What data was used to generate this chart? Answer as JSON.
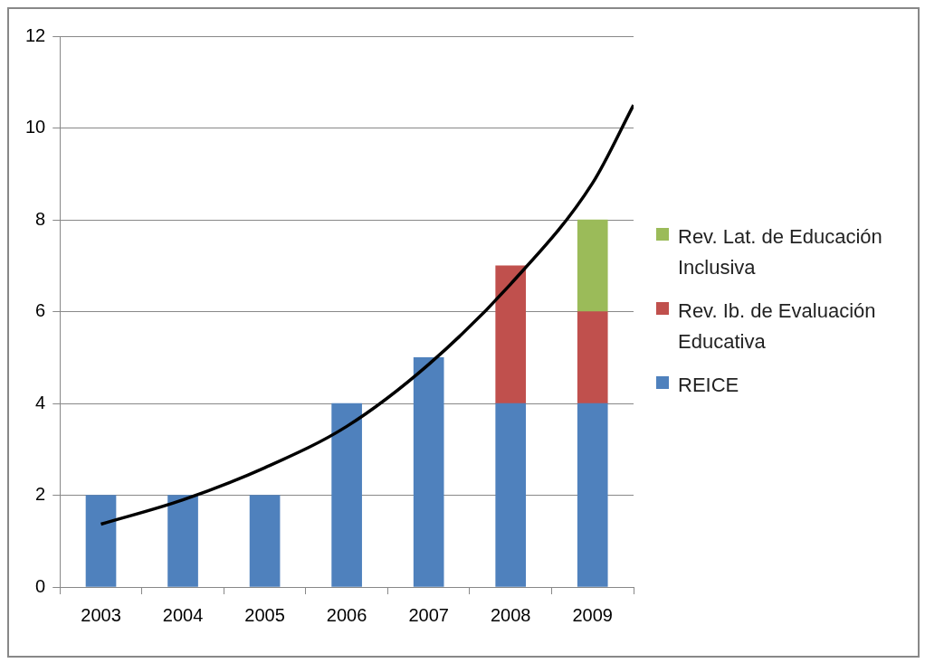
{
  "chart_data": {
    "type": "bar",
    "stacked": true,
    "x": [
      2003,
      2004,
      2005,
      2006,
      2007,
      2008,
      2009
    ],
    "xlim": [
      2002.5,
      2009.5
    ],
    "xticks": [
      2003,
      2004,
      2005,
      2006,
      2007,
      2008,
      2009
    ],
    "ylim": [
      0,
      12
    ],
    "yticks": [
      0,
      2,
      4,
      6,
      8,
      10,
      12
    ],
    "grid": "y",
    "legend": "right",
    "series": [
      {
        "name": "REICE",
        "color": "#4f81bd",
        "values": [
          2,
          2,
          2,
          4,
          5,
          4,
          4
        ]
      },
      {
        "name": "Rev. Ib. de Evaluación Educativa",
        "color": "#c0504d",
        "values": [
          null,
          null,
          null,
          null,
          null,
          3,
          2
        ]
      },
      {
        "name": "Rev. Lat. de Educación Inclusiva",
        "color": "#9bbb59",
        "values": [
          null,
          null,
          null,
          null,
          null,
          null,
          2
        ]
      },
      {
        "type": "line",
        "color": "#000000",
        "marker": "none",
        "x": [
          2003,
          2004,
          2005,
          2006,
          2007,
          2008,
          2009,
          2009.5
        ],
        "values": [
          1.37,
          1.9,
          2.6,
          3.5,
          4.85,
          6.6,
          8.8,
          10.5
        ]
      }
    ]
  }
}
